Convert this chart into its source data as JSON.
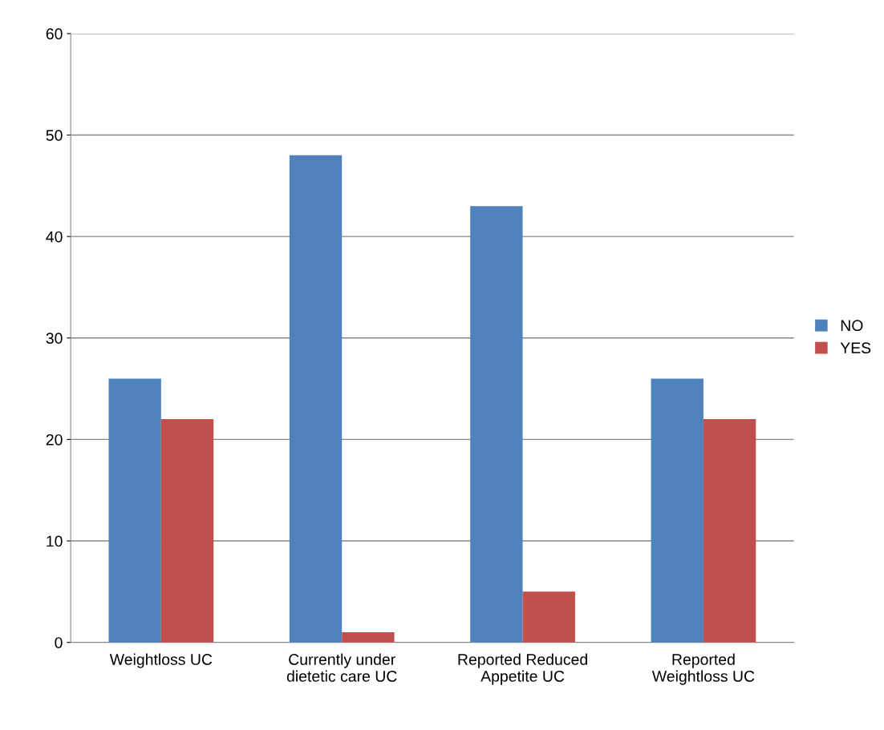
{
  "chart_data": {
    "type": "bar",
    "categories": [
      "Weightloss UC",
      "Currently under dietetic care UC",
      "Reported Reduced Appetite UC",
      "Reported Weightloss UC"
    ],
    "series": [
      {
        "name": "NO",
        "color": "#4f81bd",
        "values": [
          26,
          48,
          43,
          26
        ]
      },
      {
        "name": "YES",
        "color": "#c0504d",
        "values": [
          22,
          1,
          5,
          22
        ]
      }
    ],
    "ylim": [
      0,
      60
    ],
    "yticks": [
      0,
      10,
      20,
      30,
      40,
      50,
      60
    ],
    "grid": "y",
    "legend": "right"
  }
}
